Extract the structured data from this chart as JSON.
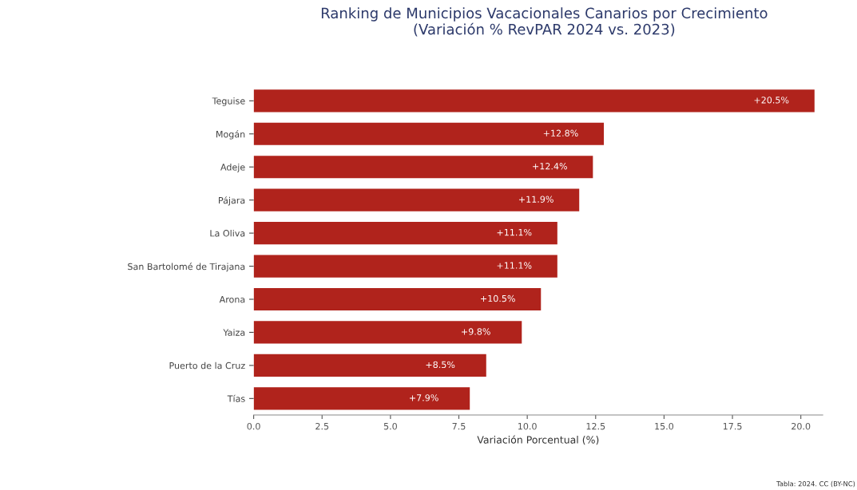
{
  "chart_data": {
    "type": "bar",
    "orientation": "horizontal",
    "title": "Ranking de Municipios Vacacionales Canarios por Crecimiento\n(Variación % RevPAR 2024 vs. 2023)",
    "xlabel": "Variación Porcentual (%)",
    "categories": [
      "Teguise",
      "Mogán",
      "Adeje",
      "Pájara",
      "La Oliva",
      "San Bartolomé de Tirajana",
      "Arona",
      "Yaiza",
      "Puerto de la Cruz",
      "Tías"
    ],
    "values": [
      20.5,
      12.8,
      12.4,
      11.9,
      11.1,
      11.1,
      10.5,
      9.8,
      8.5,
      7.9
    ],
    "value_labels": [
      "+20.5%",
      "+12.8%",
      "+12.4%",
      "+11.9%",
      "+11.1%",
      "+11.1%",
      "+10.5%",
      "+9.8%",
      "+8.5%",
      "+7.9%"
    ],
    "color": "#b0231c",
    "xlim": [
      0,
      20.8
    ],
    "xticks": [
      {
        "value": 0,
        "label": "0.0"
      },
      {
        "value": 2.5,
        "label": "2.5"
      },
      {
        "value": 5,
        "label": "5.0"
      },
      {
        "value": 7.5,
        "label": "7.5"
      },
      {
        "value": 10,
        "label": "10.0"
      },
      {
        "value": 12.5,
        "label": "12.5"
      },
      {
        "value": 15,
        "label": "15.0"
      },
      {
        "value": 17.5,
        "label": "17.5"
      },
      {
        "value": 20,
        "label": "20.0"
      }
    ],
    "annotations": [
      "Tabla: 2024. CC (BY-NC)"
    ],
    "grid": false,
    "legend": false
  }
}
